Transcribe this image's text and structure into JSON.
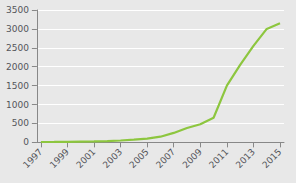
{
  "chart_data": {
    "type": "line",
    "x": [
      1997,
      1998,
      1999,
      2000,
      2001,
      2002,
      2003,
      2004,
      2005,
      2006,
      2007,
      2008,
      2009,
      2010,
      2011,
      2012,
      2013,
      2014,
      2015
    ],
    "values": [
      10,
      12,
      15,
      20,
      25,
      35,
      50,
      70,
      100,
      150,
      250,
      380,
      480,
      650,
      1500,
      2050,
      2550,
      3000,
      3150
    ],
    "color": "#8DC63F",
    "xlim": [
      1996.7,
      2015.3
    ],
    "xticks": [
      1997,
      1999,
      2001,
      2003,
      2005,
      2007,
      2009,
      2011,
      2013,
      2015
    ],
    "ylim": [
      0,
      3500
    ],
    "yticks": [
      0,
      500,
      1000,
      1500,
      2000,
      2500,
      3000,
      3500
    ],
    "grid": true
  }
}
